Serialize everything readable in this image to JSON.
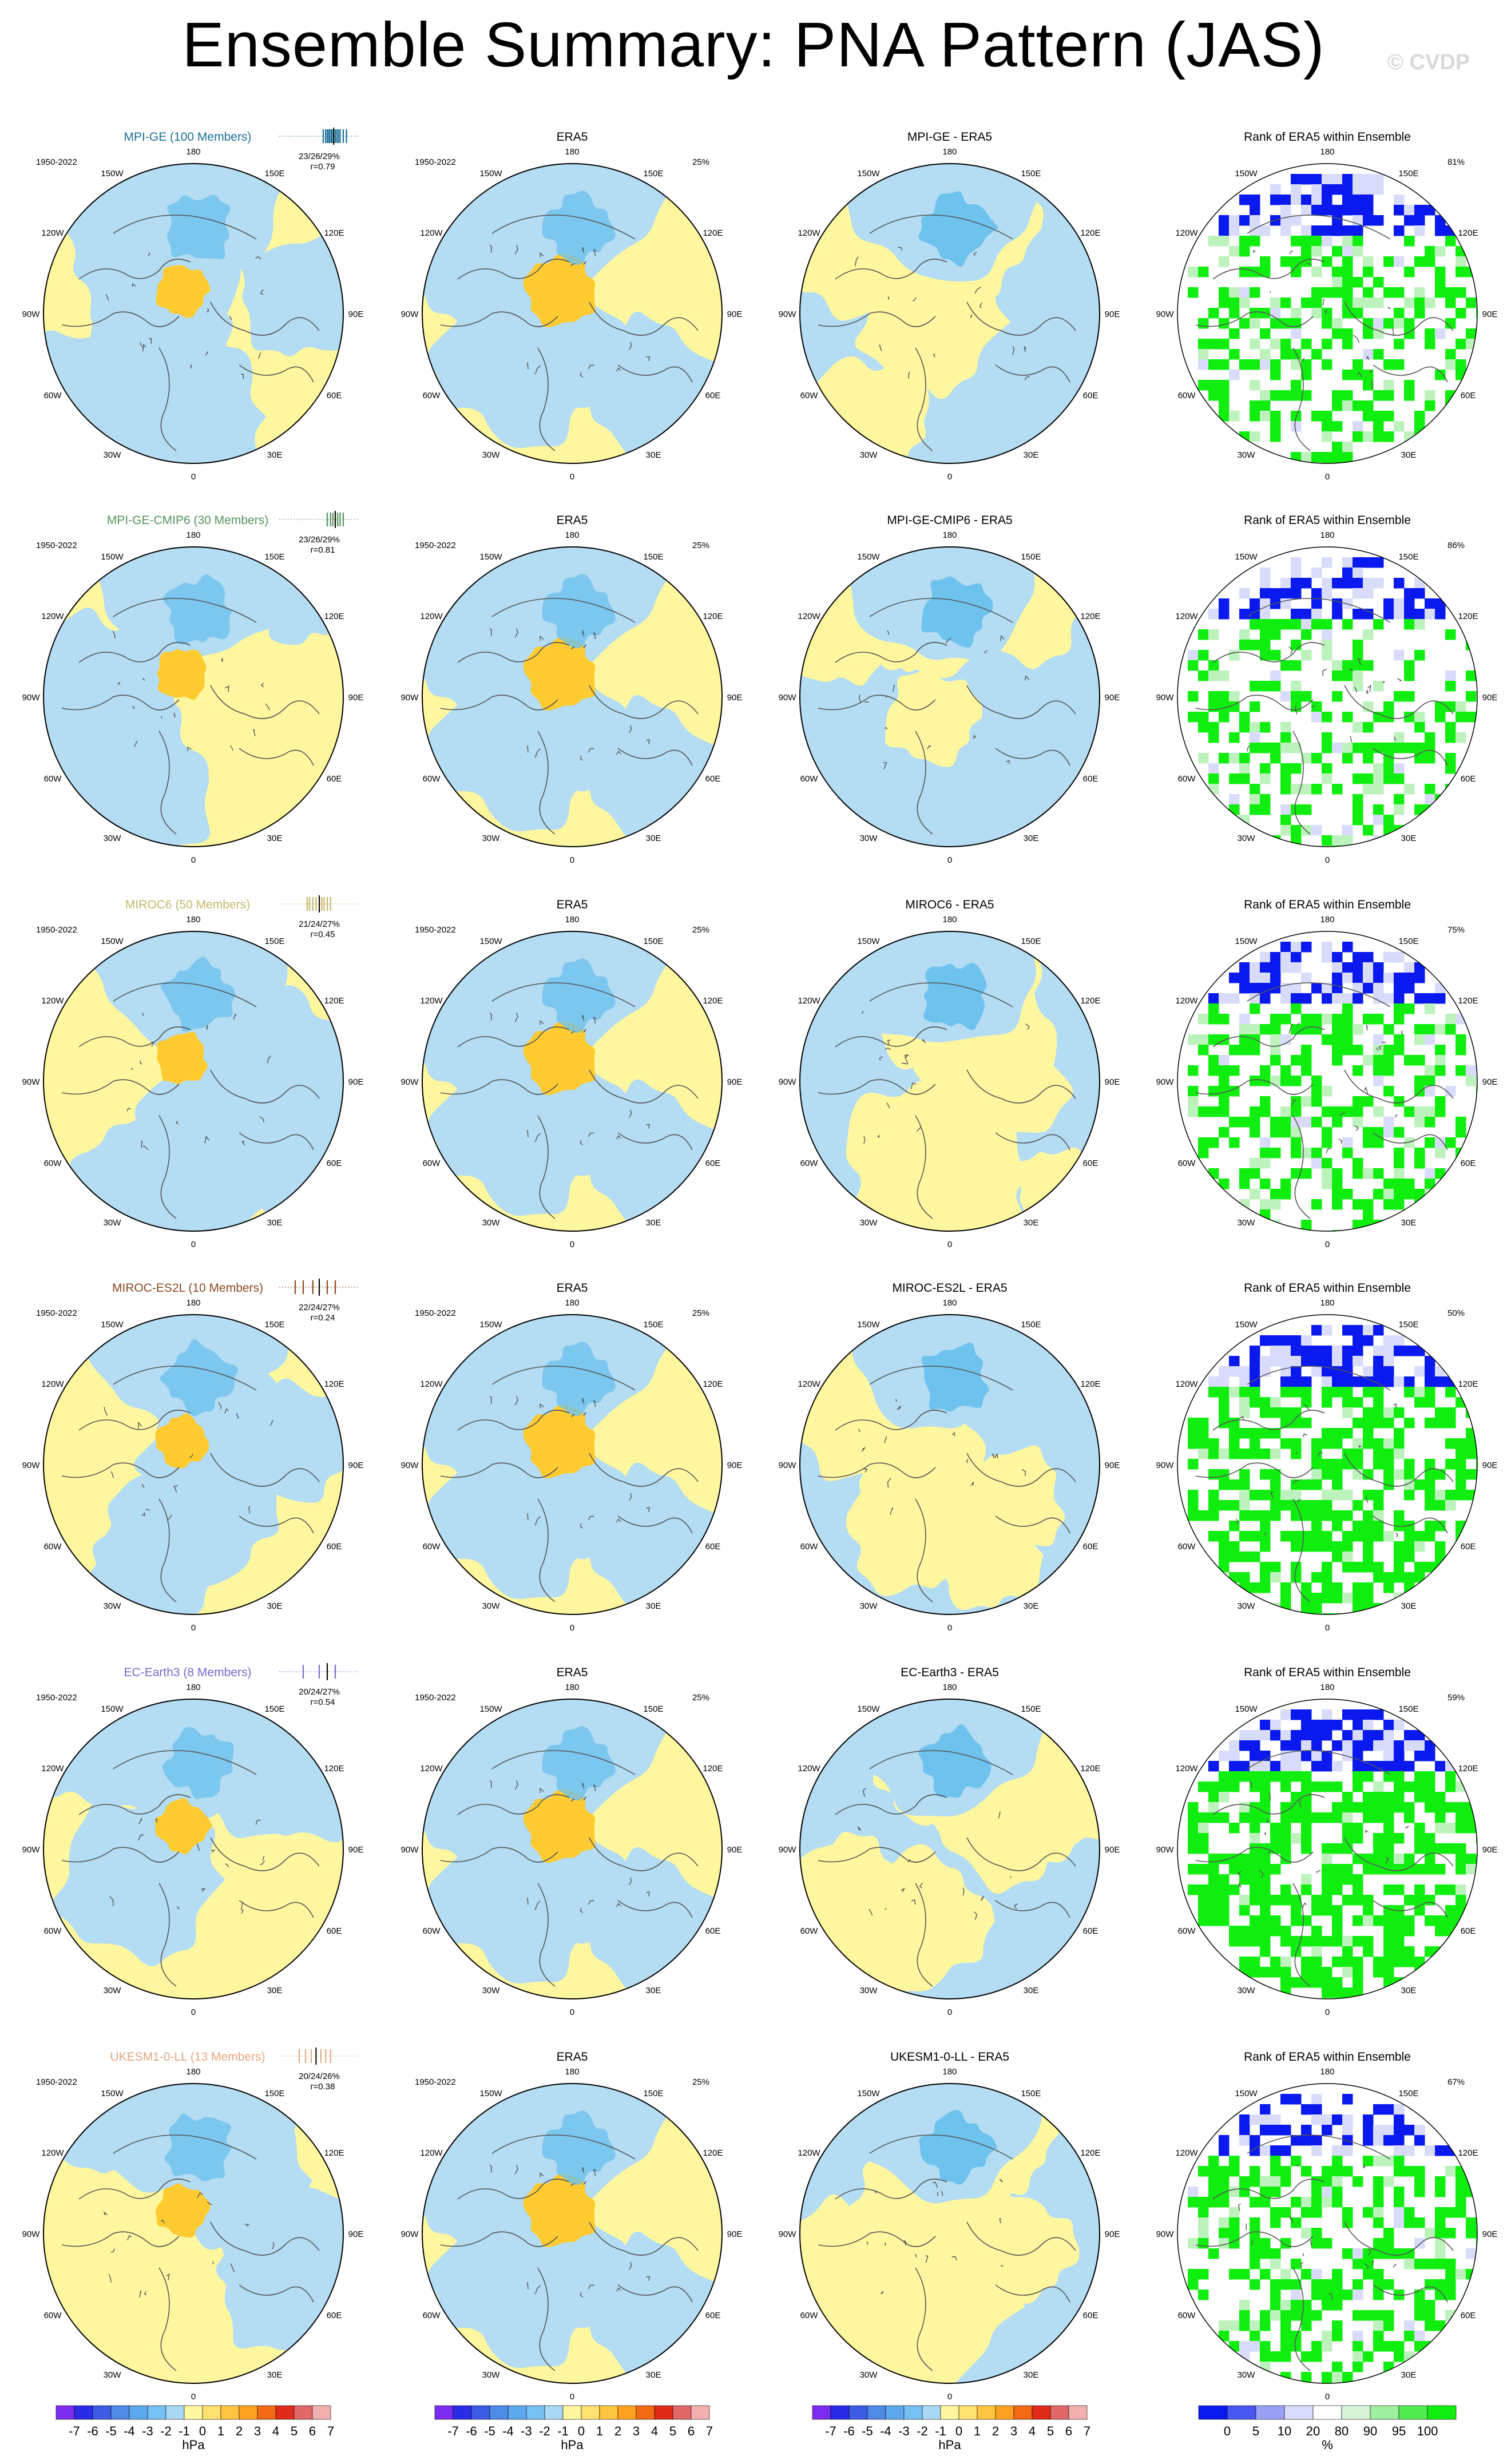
{
  "title": "Ensemble Summary: PNA Pattern (JAS)",
  "watermark": "© CVDP",
  "colors": {
    "ocean_blue": "#b4dcf2",
    "land_yellow": "#fff7a0",
    "center_orange": "#ffcb30",
    "deep_blue": "#6ec2ee",
    "rank_blue": "#0a1aee",
    "rank_lightblue": "#d8dcfa",
    "rank_green": "#10ee10",
    "rank_lightgreen": "#bdf2bd"
  },
  "longitude_labels": [
    "180",
    "150E",
    "120E",
    "90E",
    "60E",
    "30E",
    "0",
    "30W",
    "60W",
    "90W",
    "120W",
    "150W"
  ],
  "period": "1950-2022",
  "rows": [
    {
      "model": "MPI-GE (100 Members)",
      "model_color": "#1d6f96",
      "pcts": "23/26/29%",
      "r": "r=0.79",
      "diff_title": "MPI-GE - ERA5",
      "rank_pct": "81%",
      "strip": [
        0.55,
        0.58,
        0.6,
        0.62,
        0.63,
        0.65,
        0.66,
        0.68,
        0.7,
        0.72,
        0.74,
        0.76,
        0.8,
        0.84
      ]
    },
    {
      "model": "MPI-GE-CMIP6 (30 Members)",
      "model_color": "#56925b",
      "pcts": "23/26/29%",
      "r": "r=0.81",
      "diff_title": "MPI-GE-CMIP6 - ERA5",
      "rank_pct": "86%",
      "strip": [
        0.6,
        0.64,
        0.67,
        0.7,
        0.73,
        0.76,
        0.8
      ]
    },
    {
      "model": "MIROC6 (50 Members)",
      "model_color": "#c6b86a",
      "pcts": "21/24/27%",
      "r": "r=0.45",
      "diff_title": "MIROC6 - ERA5",
      "rank_pct": "75%",
      "strip": [
        0.35,
        0.38,
        0.42,
        0.46,
        0.5,
        0.53,
        0.56,
        0.6,
        0.64
      ]
    },
    {
      "model": "MIROC-ES2L (10 Members)",
      "model_color": "#8a4a20",
      "pcts": "22/24/27%",
      "r": "r=0.24",
      "diff_title": "MIROC-ES2L - ERA5",
      "rank_pct": "50%",
      "strip": [
        0.2,
        0.3,
        0.42,
        0.5,
        0.6,
        0.7
      ]
    },
    {
      "model": "EC-Earth3 (8 Members)",
      "model_color": "#7f66cf",
      "pcts": "20/24/27%",
      "r": "r=0.54",
      "diff_title": "EC-Earth3 - ERA5",
      "rank_pct": "59%",
      "strip": [
        0.3,
        0.5,
        0.6,
        0.7
      ]
    },
    {
      "model": "UKESM1-0-LL (13 Members)",
      "model_color": "#e2a881",
      "pcts": "20/24/26%",
      "r": "r=0.38",
      "diff_title": "UKESM1-0-LL - ERA5",
      "rank_pct": "67%",
      "strip": [
        0.25,
        0.33,
        0.4,
        0.46,
        0.52,
        0.58,
        0.64
      ]
    }
  ],
  "era5": {
    "title": "ERA5",
    "pct": "25%"
  },
  "rank_title": "Rank of ERA5 within Ensemble",
  "colorbar_hpa": {
    "labels": [
      "-7",
      "-6",
      "-5",
      "-4",
      "-3",
      "-2",
      "-1",
      "0",
      "1",
      "2",
      "3",
      "4",
      "5",
      "6",
      "7"
    ],
    "colors": [
      "#7a2cf0",
      "#2b2be8",
      "#3c5ce6",
      "#4f8ae6",
      "#5ea8ee",
      "#76c0f2",
      "#a8d8f4",
      "#fff7a0",
      "#ffe070",
      "#ffc440",
      "#ffa020",
      "#f26a16",
      "#e02a1a",
      "#e06868",
      "#f2b0b0"
    ],
    "unit": "hPa"
  },
  "colorbar_rank": {
    "labels": [
      "0",
      "5",
      "10",
      "20",
      "80",
      "90",
      "95",
      "100"
    ],
    "colors": [
      "#0a1aee",
      "#4a56f0",
      "#9aa0f4",
      "#d8dcfa",
      "#ffffff",
      "#d8f4d8",
      "#a0eea0",
      "#52ec52",
      "#10ee10"
    ],
    "unit": "%"
  }
}
